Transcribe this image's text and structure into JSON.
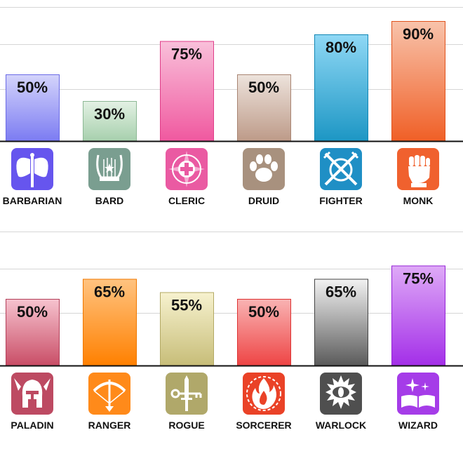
{
  "chart_data": [
    {
      "type": "bar",
      "categories": [
        "BARBARIAN",
        "BARD",
        "CLERIC",
        "DRUID",
        "FIGHTER",
        "MONK"
      ],
      "values": [
        50,
        30,
        75,
        50,
        80,
        90
      ],
      "data_labels": [
        "50%",
        "30%",
        "75%",
        "50%",
        "80%",
        "90%"
      ],
      "icons": [
        "double-axe-icon",
        "lyre-icon",
        "holy-cross-icon",
        "paw-icon",
        "crossed-swords-shield-icon",
        "raised-fist-icon"
      ],
      "colors": [
        {
          "top": "#d4d4fb",
          "bottom": "#7b7bf2",
          "edge": "#6a6ae6",
          "icon": "#6655ee"
        },
        {
          "top": "#e3f1e4",
          "bottom": "#a6cfac",
          "edge": "#8cb894",
          "icon": "#7a9e90"
        },
        {
          "top": "#f9c0da",
          "bottom": "#f0589f",
          "edge": "#e03d88",
          "icon": "#ea5aa2"
        },
        {
          "top": "#ede3dc",
          "bottom": "#bd9a88",
          "edge": "#a88472",
          "icon": "#a8917e"
        },
        {
          "top": "#8fd8f5",
          "bottom": "#1c96c4",
          "edge": "#1286b4",
          "icon": "#1f8fc5"
        },
        {
          "top": "#f8c3ab",
          "bottom": "#f05f26",
          "edge": "#e0521c",
          "icon": "#f0612e"
        }
      ],
      "ylim": [
        0,
        100
      ],
      "grid": true,
      "legend": "none"
    },
    {
      "type": "bar",
      "categories": [
        "PALADIN",
        "RANGER",
        "ROGUE",
        "SORCERER",
        "WARLOCK",
        "WIZARD"
      ],
      "values": [
        50,
        65,
        55,
        50,
        65,
        75
      ],
      "data_labels": [
        "50%",
        "65%",
        "55%",
        "50%",
        "65%",
        "75%"
      ],
      "icons": [
        "winged-helmet-icon",
        "bow-and-arrow-icon",
        "dagger-and-key-icon",
        "fire-icon",
        "evil-eye-icon",
        "spellbook-icon"
      ],
      "colors": [
        {
          "top": "#f6c3cf",
          "bottom": "#c94d66",
          "edge": "#b3405a",
          "icon": "#bd4a62"
        },
        {
          "top": "#ffc380",
          "bottom": "#ff8000",
          "edge": "#f07800",
          "icon": "#ff8a1a"
        },
        {
          "top": "#f7f2cf",
          "bottom": "#c7bd78",
          "edge": "#b3a964",
          "icon": "#b0a86a"
        },
        {
          "top": "#f9b3b3",
          "bottom": "#ee4444",
          "edge": "#dd3333",
          "icon": "#ea4227"
        },
        {
          "top": "#f2f2f2",
          "bottom": "#5a5a5a",
          "edge": "#444444",
          "icon": "#4f4f4f"
        },
        {
          "top": "#dfaaf7",
          "bottom": "#a32ee8",
          "edge": "#9322d6",
          "icon": "#a53ce8"
        }
      ],
      "ylim": [
        0,
        100
      ],
      "grid": true,
      "legend": "none"
    }
  ]
}
